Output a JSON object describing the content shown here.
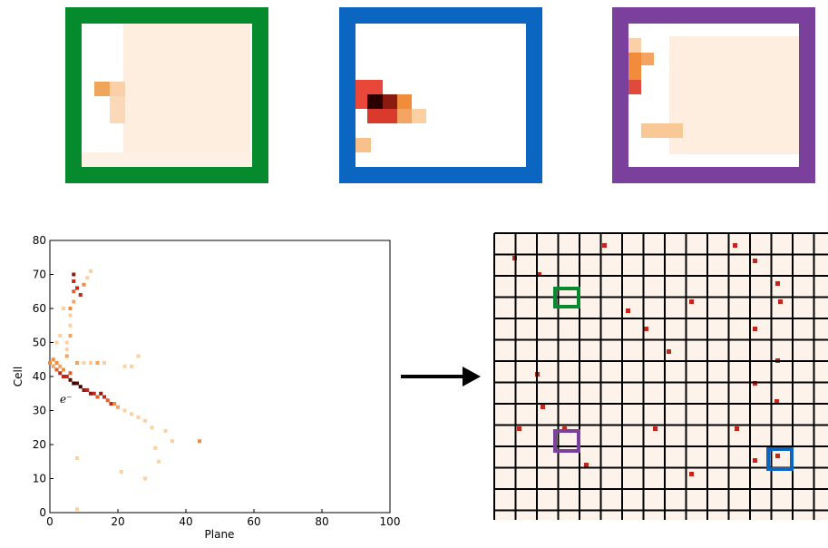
{
  "chart_data": {
    "type": "scatter",
    "xlabel": "Plane",
    "ylabel": "Cell",
    "annotation": "e⁻",
    "xlim": [
      0,
      100
    ],
    "ylim": [
      0,
      80
    ],
    "xticks": [
      0,
      20,
      40,
      60,
      80,
      100
    ],
    "yticks": [
      0,
      10,
      20,
      30,
      40,
      50,
      60,
      70,
      80
    ],
    "x": [
      0,
      1,
      1,
      2,
      2,
      3,
      3,
      4,
      4,
      5,
      6,
      6,
      7,
      8,
      9,
      10,
      11,
      12,
      13,
      14,
      15,
      16,
      17,
      18,
      19,
      20,
      22,
      24,
      26,
      28,
      30,
      34,
      36,
      44,
      31,
      32,
      21,
      28,
      8,
      8,
      5,
      5,
      5,
      6,
      6,
      6,
      6,
      7,
      7,
      7,
      7,
      8,
      9,
      10,
      11,
      12,
      4,
      3,
      2,
      8,
      10,
      12,
      14,
      16,
      22,
      24,
      26
    ],
    "y": [
      44,
      43,
      45,
      42,
      44,
      41,
      43,
      40,
      42,
      40,
      39,
      41,
      38,
      38,
      37,
      36,
      36,
      35,
      35,
      34,
      35,
      34,
      33,
      32,
      32,
      31,
      30,
      29,
      28,
      27,
      25,
      24,
      21,
      21,
      19,
      15,
      12,
      10,
      16,
      1,
      46,
      48,
      50,
      52,
      55,
      58,
      60,
      62,
      65,
      68,
      70,
      66,
      64,
      67,
      69,
      71,
      60,
      52,
      50,
      44,
      44,
      44,
      44,
      44,
      43,
      43,
      46
    ],
    "colors": [
      "#f08c3a",
      "#f4a460",
      "#f08c3a",
      "#e0602a",
      "#f08c3a",
      "#c0281b",
      "#f4a460",
      "#c0281b",
      "#f08c3a",
      "#c0281b",
      "#5a0a05",
      "#e0602a",
      "#3a0000",
      "#5a0a05",
      "#3a0000",
      "#8b1a10",
      "#c0281b",
      "#8b1a10",
      "#c0281b",
      "#e0602a",
      "#8b1a10",
      "#c0281b",
      "#e0602a",
      "#c0281b",
      "#f08c3a",
      "#f4a460",
      "#fdd0a2",
      "#fdd0a2",
      "#fdd0a2",
      "#fdd0a2",
      "#fdd0a2",
      "#fdd0a2",
      "#fdd0a2",
      "#f08c3a",
      "#fdd0a2",
      "#fdd0a2",
      "#fdd0a2",
      "#fdd0a2",
      "#fdd0a2",
      "#fdd0a2",
      "#f4a460",
      "#fdd0a2",
      "#fdd0a2",
      "#f4a460",
      "#fdd0a2",
      "#fdd0a2",
      "#f08c3a",
      "#f4a460",
      "#e0602a",
      "#c0281b",
      "#8b1a10",
      "#c0281b",
      "#c0281b",
      "#f08c3a",
      "#fdd0a2",
      "#fdd0a2",
      "#fdd0a2",
      "#fdd0a2",
      "#fdd0a2",
      "#f4a460",
      "#fdd0a2",
      "#fdd0a2",
      "#f4a460",
      "#fdd0a2",
      "#fdd0a2",
      "#fdd0a2",
      "#fdd0a2"
    ]
  }
}
